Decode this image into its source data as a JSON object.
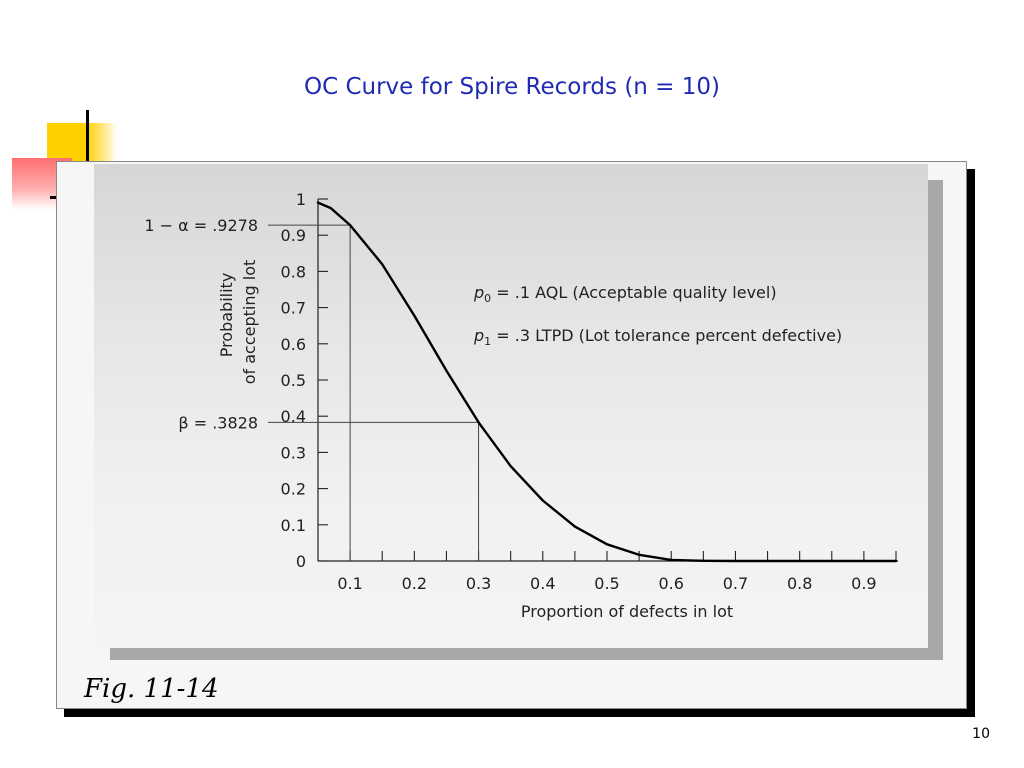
{
  "slide": {
    "title": "OC Curve for Spire Records (n = 10)",
    "figure_label": "Fig. 11-14",
    "page_number": "10"
  },
  "colors": {
    "title": "#1f2bb3",
    "decor_yellow": "#ffd000",
    "decor_red": "#ff6f6f",
    "curve": "#000000"
  },
  "chart_data": {
    "type": "line",
    "xlabel": "Proportion of defects in lot",
    "ylabel_lines": [
      "Probability",
      "of accepting lot"
    ],
    "xlim": [
      0.05,
      0.95
    ],
    "ylim": [
      0,
      1
    ],
    "x_ticks": [
      0.1,
      0.2,
      0.3,
      0.4,
      0.5,
      0.6,
      0.7,
      0.8,
      0.9
    ],
    "x_tick_labels": [
      "0.1",
      "0.2",
      "0.3",
      "0.4",
      "0.5",
      "0.6",
      "0.7",
      "0.8",
      "0.9"
    ],
    "y_ticks": [
      0,
      0.1,
      0.2,
      0.3,
      0.4,
      0.5,
      0.6,
      0.7,
      0.8,
      0.9,
      1
    ],
    "y_tick_labels": [
      "0",
      "0.1",
      "0.2",
      "0.3",
      "0.4",
      "0.5",
      "0.6",
      "0.7",
      "0.8",
      "0.9",
      "1"
    ],
    "series": [
      {
        "x": [
          0.05,
          0.07,
          0.1,
          0.15,
          0.2,
          0.25,
          0.3,
          0.35,
          0.4,
          0.45,
          0.5,
          0.55,
          0.6,
          0.65,
          0.7,
          0.8,
          0.9,
          0.95
        ],
        "y": [
          0.99,
          0.975,
          0.9278,
          0.82,
          0.678,
          0.526,
          0.3828,
          0.262,
          0.167,
          0.095,
          0.046,
          0.017,
          0.003,
          0.0005,
          0.0,
          0.0,
          0.0,
          0.0
        ]
      }
    ],
    "reference_lines": [
      {
        "x": 0.1,
        "y": 0.9278,
        "label": "1 − α = .9278"
      },
      {
        "x": 0.3,
        "y": 0.3828,
        "label": "β = .3828"
      }
    ],
    "annotations": [
      {
        "symbol": "p",
        "subscript": "0",
        "text": " = .1 AQL (Acceptable quality level)"
      },
      {
        "symbol": "p",
        "subscript": "1",
        "text": " = .3 LTPD (Lot tolerance percent defective)"
      }
    ],
    "grid": false
  }
}
